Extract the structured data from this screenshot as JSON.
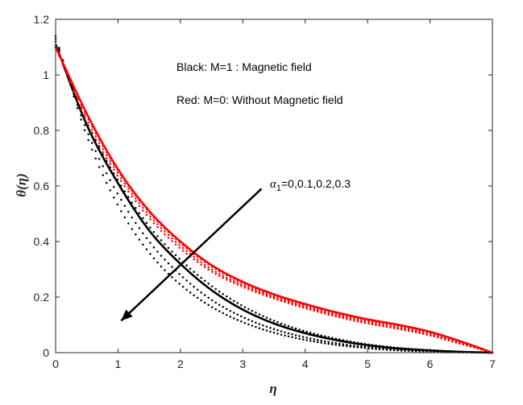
{
  "chart_data": {
    "type": "line",
    "xlabel": "η",
    "ylabel": "θ(η)",
    "xlim": [
      0,
      7
    ],
    "ylim": [
      0,
      1.2
    ],
    "xticks": [
      0,
      1,
      2,
      3,
      4,
      5,
      6,
      7
    ],
    "yticks": [
      0,
      0.2,
      0.4,
      0.6,
      0.8,
      1,
      1.2
    ],
    "xtick_labels": [
      "0",
      "1",
      "2",
      "3",
      "4",
      "5",
      "6",
      "7"
    ],
    "ytick_labels": [
      "0",
      "0.2",
      "0.4",
      "0.6",
      "0.8",
      "1",
      "1.2"
    ],
    "grid": false,
    "colors": {
      "black": "#000000",
      "red": "#ff0000"
    },
    "annotations": {
      "black_legend": "Black: M=1 :   Magnetic field",
      "red_legend": "Red:   M=0:   Without Magnetic field",
      "alpha_prefix": "α",
      "alpha_sub": "1",
      "alpha_values": "=0,0.1,0.2,0.3"
    },
    "series": [
      {
        "group": "black",
        "alpha": 0,
        "style": "solid",
        "x": [
          0,
          0.5,
          1,
          1.5,
          2,
          2.5,
          3,
          3.5,
          4,
          4.5,
          5,
          5.5,
          6,
          6.5,
          7
        ],
        "y": [
          1.11,
          0.82,
          0.61,
          0.44,
          0.32,
          0.225,
          0.155,
          0.105,
          0.07,
          0.045,
          0.027,
          0.015,
          0.008,
          0.003,
          0
        ]
      },
      {
        "group": "black",
        "alpha": 0.1,
        "style": "dotted",
        "x": [
          0,
          0.5,
          1,
          1.5,
          2,
          2.5,
          3,
          3.5,
          4,
          4.5,
          5,
          5.5,
          6,
          6.5,
          7
        ],
        "y": [
          1.12,
          0.83,
          0.62,
          0.455,
          0.335,
          0.24,
          0.168,
          0.115,
          0.077,
          0.05,
          0.03,
          0.017,
          0.009,
          0.003,
          0
        ]
      },
      {
        "group": "black",
        "alpha": 0.2,
        "style": "dotted",
        "x": [
          0,
          0.5,
          1,
          1.5,
          2,
          2.5,
          3,
          3.5,
          4,
          4.5,
          5,
          5.5,
          6,
          6.5,
          7
        ],
        "y": [
          1.13,
          0.8,
          0.57,
          0.4,
          0.28,
          0.19,
          0.128,
          0.085,
          0.055,
          0.034,
          0.02,
          0.011,
          0.006,
          0.002,
          0
        ]
      },
      {
        "group": "black",
        "alpha": 0.3,
        "style": "dotted",
        "x": [
          0,
          0.5,
          1,
          1.5,
          2,
          2.5,
          3,
          3.5,
          4,
          4.5,
          5,
          5.5,
          6,
          6.5,
          7
        ],
        "y": [
          1.14,
          0.78,
          0.53,
          0.36,
          0.245,
          0.165,
          0.11,
          0.072,
          0.046,
          0.028,
          0.016,
          0.008,
          0.004,
          0.001,
          0
        ]
      },
      {
        "group": "red",
        "alpha": 0,
        "style": "solid",
        "x": [
          0,
          0.5,
          1,
          1.5,
          2,
          2.5,
          3,
          3.5,
          4,
          4.5,
          5,
          5.5,
          6,
          6.5,
          7
        ],
        "y": [
          1.1,
          0.86,
          0.66,
          0.51,
          0.4,
          0.315,
          0.255,
          0.21,
          0.175,
          0.145,
          0.12,
          0.1,
          0.075,
          0.04,
          0
        ]
      },
      {
        "group": "red",
        "alpha": 0.1,
        "style": "dotted",
        "x": [
          0,
          0.5,
          1,
          1.5,
          2,
          2.5,
          3,
          3.5,
          4,
          4.5,
          5,
          5.5,
          6,
          6.5,
          7
        ],
        "y": [
          1.1,
          0.85,
          0.655,
          0.505,
          0.395,
          0.31,
          0.25,
          0.205,
          0.17,
          0.14,
          0.115,
          0.095,
          0.07,
          0.037,
          0
        ]
      },
      {
        "group": "red",
        "alpha": 0.2,
        "style": "dotted",
        "x": [
          0,
          0.5,
          1,
          1.5,
          2,
          2.5,
          3,
          3.5,
          4,
          4.5,
          5,
          5.5,
          6,
          6.5,
          7
        ],
        "y": [
          1.1,
          0.84,
          0.645,
          0.495,
          0.385,
          0.3,
          0.243,
          0.2,
          0.165,
          0.135,
          0.11,
          0.09,
          0.066,
          0.034,
          0
        ]
      },
      {
        "group": "red",
        "alpha": 0.3,
        "style": "dotted",
        "x": [
          0,
          0.5,
          1,
          1.5,
          2,
          2.5,
          3,
          3.5,
          4,
          4.5,
          5,
          5.5,
          6,
          6.5,
          7
        ],
        "y": [
          1.1,
          0.83,
          0.635,
          0.485,
          0.375,
          0.292,
          0.237,
          0.195,
          0.16,
          0.13,
          0.105,
          0.085,
          0.062,
          0.031,
          0
        ]
      }
    ],
    "arrow": {
      "from": [
        3.3,
        0.59
      ],
      "to": [
        1.05,
        0.115
      ]
    }
  }
}
